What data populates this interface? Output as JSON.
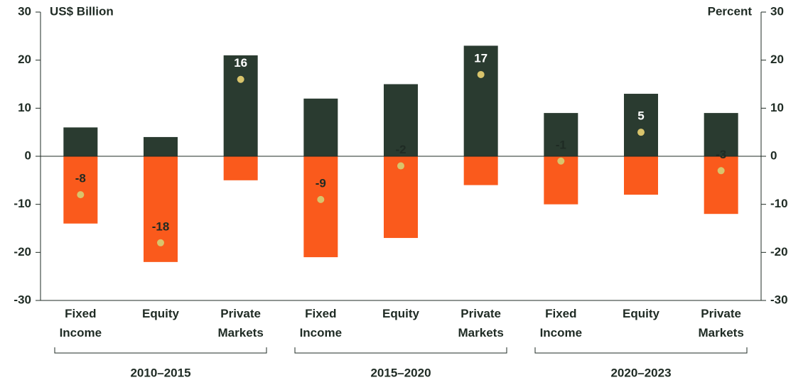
{
  "chart_data": {
    "type": "bar",
    "y_label": "US$ Billion",
    "y2_label": "Percent",
    "categories": [
      "Fixed Income",
      "Equity",
      "Private Markets",
      "Fixed Income",
      "Equity",
      "Private Markets",
      "Fixed Income",
      "Equity",
      "Private Markets"
    ],
    "groups": [
      "2010–2015",
      "2015–2020",
      "2020–2023"
    ],
    "series": [
      {
        "color": "#2a3b30",
        "values": [
          6,
          4,
          21,
          12,
          15,
          23,
          9,
          13,
          9
        ]
      },
      {
        "color": "#fa5a1c",
        "values": [
          -14,
          -22,
          -5,
          -21,
          -17,
          -6,
          -10,
          -8,
          -12
        ]
      },
      {
        "color": "#d8c46c",
        "axis": "y2",
        "type": "scatter",
        "values": [
          -8,
          -18,
          16,
          -9,
          -2,
          17,
          -1,
          5,
          -3
        ]
      }
    ],
    "ylim": [
      -30,
      30
    ],
    "yticks": [
      -30,
      -20,
      -10,
      0,
      10,
      20,
      30
    ],
    "y2lim": [
      -30,
      30
    ],
    "y2ticks": [
      -30,
      -20,
      -10,
      0,
      10,
      20,
      30
    ]
  }
}
